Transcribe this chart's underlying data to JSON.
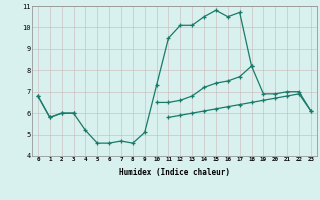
{
  "xlabel": "Humidex (Indice chaleur)",
  "x_all": [
    0,
    1,
    2,
    3,
    4,
    5,
    6,
    7,
    8,
    9,
    10,
    11,
    12,
    13,
    14,
    15,
    16,
    17,
    18,
    19,
    20,
    21,
    22,
    23
  ],
  "line_main": [
    6.8,
    5.8,
    6.0,
    6.0,
    5.2,
    4.6,
    4.6,
    4.7,
    4.6,
    5.1,
    7.3,
    9.5,
    10.1,
    10.1,
    10.5,
    10.8,
    10.5,
    10.7,
    8.2,
    null,
    null,
    null,
    null,
    null
  ],
  "line_upper": [
    6.8,
    5.8,
    6.0,
    6.0,
    null,
    null,
    null,
    null,
    null,
    null,
    6.5,
    6.5,
    6.6,
    6.8,
    7.2,
    7.4,
    7.5,
    7.7,
    8.2,
    6.9,
    6.9,
    7.0,
    7.0,
    6.1
  ],
  "line_lower": [
    null,
    null,
    null,
    null,
    null,
    null,
    null,
    null,
    null,
    null,
    null,
    5.8,
    5.9,
    6.0,
    6.1,
    6.2,
    6.3,
    6.4,
    6.5,
    6.6,
    6.7,
    6.8,
    6.9,
    6.1
  ],
  "color": "#1a7a6a",
  "bg_color": "#d8f0ee",
  "ylim": [
    4,
    11
  ],
  "xlim": [
    -0.5,
    23.5
  ],
  "yticks": [
    4,
    5,
    6,
    7,
    8,
    9,
    10,
    11
  ],
  "xticks": [
    0,
    1,
    2,
    3,
    4,
    5,
    6,
    7,
    8,
    9,
    10,
    11,
    12,
    13,
    14,
    15,
    16,
    17,
    18,
    19,
    20,
    21,
    22,
    23
  ]
}
